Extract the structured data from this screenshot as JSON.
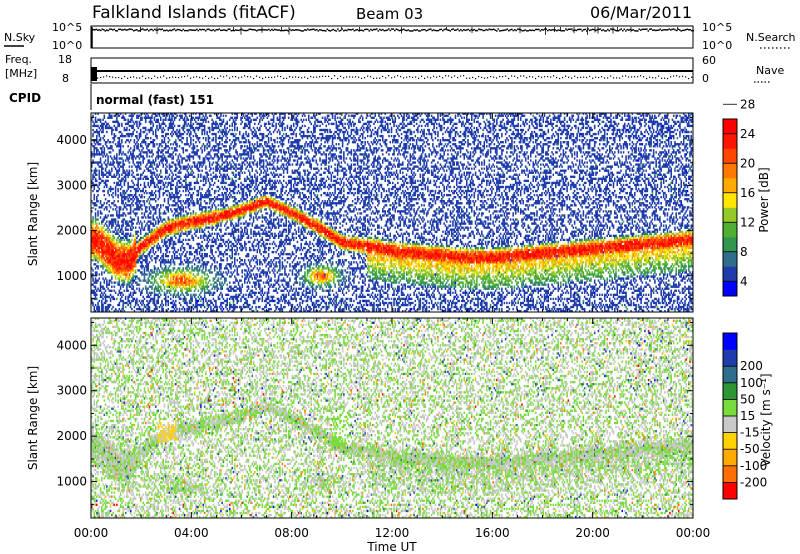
{
  "header": {
    "station": "Falkland Islands (fitACF)",
    "beam": "Beam 03",
    "date": "06/Mar/2011"
  },
  "strip_panels": {
    "nsky": {
      "label": "N.Sky",
      "ticks": [
        "10^5",
        "10^0"
      ]
    },
    "nsearch": {
      "label": "N.Search",
      "ticks": [
        "10^5",
        "10^0"
      ]
    },
    "freq": {
      "label_line1": "Freq.",
      "label_line2": "[MHz]",
      "ticks": [
        "18",
        "8"
      ]
    },
    "nave": {
      "label": "Nave",
      "ticks": [
        "60",
        "0"
      ]
    },
    "cpid": {
      "label": "CPID",
      "value": "normal (fast) 151"
    }
  },
  "colorbars": {
    "power": {
      "title": "Power [dB]",
      "colors": [
        "#0000ff",
        "#1e3caa",
        "#2d6e8c",
        "#329650",
        "#50af32",
        "#96c828",
        "#ffe600",
        "#ffaa00",
        "#ff7800",
        "#ff4600",
        "#ff1400",
        "#ff0000"
      ],
      "labels": [
        "4",
        "8",
        "12",
        "16",
        "20",
        "24",
        "28"
      ]
    },
    "velocity": {
      "title": "Velocity [m s⁻¹]",
      "colors": [
        "#ff0000",
        "#ff6e00",
        "#ffaa00",
        "#ffd200",
        "#c8c8c8",
        "#78dc3c",
        "#2d9632",
        "#2d6e8c",
        "#1e3caa",
        "#0000ff"
      ],
      "labels": [
        "-200",
        "-100",
        "-50",
        "-15",
        "15",
        "50",
        "100",
        "200"
      ]
    }
  },
  "chart_data": [
    {
      "type": "heatmap",
      "title": "Falkland Islands (fitACF)  Beam 03  06/Mar/2011",
      "xlabel": "",
      "ylabel": "Slant Range [km]",
      "quantity": "Power [dB]",
      "xlim": [
        0,
        24
      ],
      "ylim": [
        200,
        4600
      ],
      "x_tick_hours": [
        0,
        4,
        8,
        12,
        16,
        20,
        24
      ],
      "y_ticks": [
        1000,
        2000,
        3000,
        4000
      ],
      "value_range": [
        2,
        30
      ],
      "scatter_layer": [
        {
          "x": [
            0.2,
            0.5,
            1.0,
            1.5,
            2.0,
            3.0,
            4.0,
            5.0,
            6.0,
            7.0,
            8.0,
            9.0,
            10.0,
            11.0,
            12.0,
            13.0,
            14.0,
            15.0,
            16.0,
            17.0,
            18.0,
            19.0,
            20.0,
            21.0,
            22.0,
            23.0,
            23.9
          ],
          "y": [
            1800,
            1650,
            1350,
            1300,
            1650,
            2050,
            2200,
            2300,
            2450,
            2650,
            2400,
            2100,
            1750,
            1650,
            1550,
            1500,
            1450,
            1400,
            1400,
            1450,
            1500,
            1550,
            1600,
            1650,
            1700,
            1750,
            1800
          ],
          "name": "main-echo-ridge"
        }
      ]
    },
    {
      "type": "heatmap",
      "xlabel": "Time UT",
      "ylabel": "Slant Range [km]",
      "quantity": "Velocity [m s⁻¹]",
      "xlim": [
        0,
        24
      ],
      "ylim": [
        200,
        4600
      ],
      "x_tick_labels": [
        "00:00",
        "04:00",
        "08:00",
        "12:00",
        "16:00",
        "20:00",
        "00:00"
      ],
      "y_ticks": [
        1000,
        2000,
        3000,
        4000
      ],
      "value_range": [
        -250,
        250
      ]
    }
  ]
}
